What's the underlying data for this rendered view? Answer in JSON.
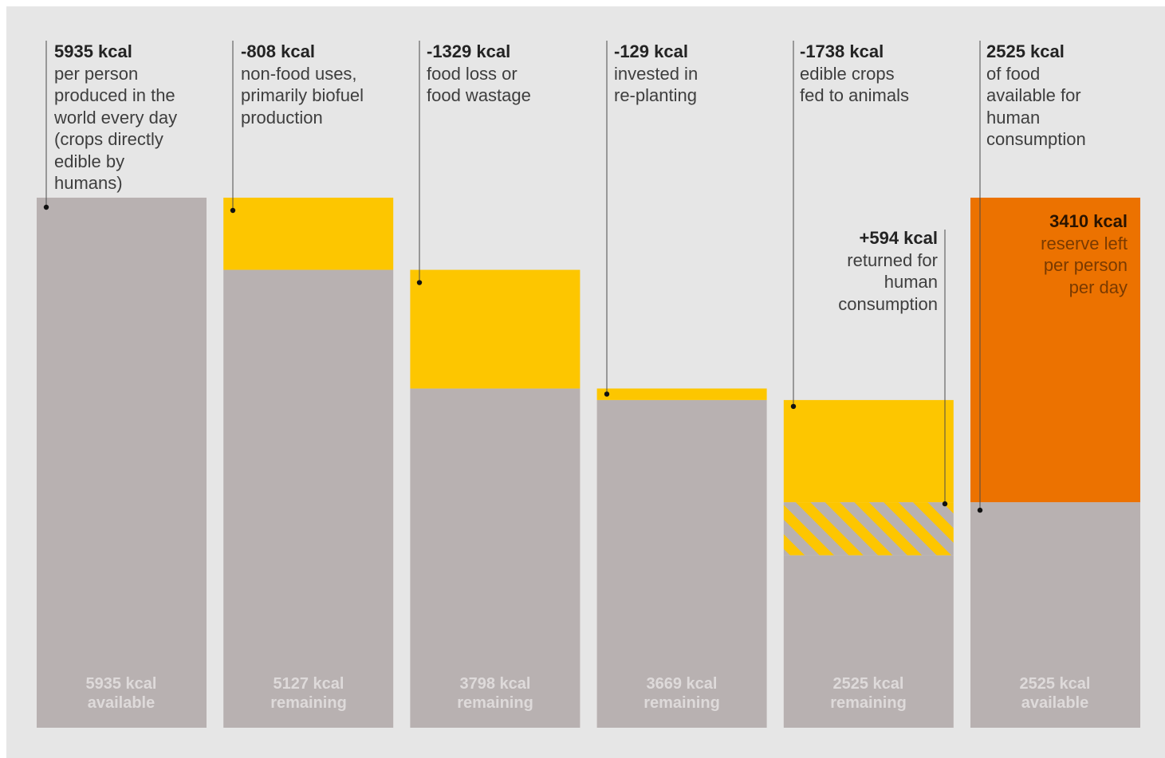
{
  "colors": {
    "background": "#e6e6e6",
    "remaining": "#b8b1b1",
    "loss": "#fdc600",
    "reserve": "#ec7200",
    "text": "#3e3e3e",
    "value_text": "#232323",
    "bottom_text": "#dedada",
    "reserve_desc": "#7a3a00"
  },
  "chart_data": {
    "type": "bar",
    "subtype": "waterfall",
    "title": "",
    "xlabel": "",
    "ylabel": "",
    "ylim": [
      0,
      5935
    ],
    "grid": false,
    "legend": "none",
    "steps": [
      {
        "value_label": "5935 kcal",
        "description": "per person\nproduced in the\nworld every day\n(crops directly\nedible by\nhumans)",
        "kind": "start",
        "change": 5935,
        "base": 5935,
        "bottom_value": "5935 kcal",
        "bottom_label": "available"
      },
      {
        "value_label": "-808 kcal",
        "description": "non-food uses,\nprimarily biofuel\nproduction",
        "kind": "loss",
        "change": -808,
        "base": 5127,
        "bottom_value": "5127 kcal",
        "bottom_label": "remaining"
      },
      {
        "value_label": "-1329 kcal",
        "description": "food loss or\nfood wastage",
        "kind": "loss",
        "change": -1329,
        "base": 3798,
        "bottom_value": "3798 kcal",
        "bottom_label": "remaining"
      },
      {
        "value_label": "-129 kcal",
        "description": "invested in\nre-planting",
        "kind": "loss",
        "change": -129,
        "base": 3669,
        "bottom_value": "3669 kcal",
        "bottom_label": "remaining"
      },
      {
        "value_label": "-1738 kcal",
        "description": "edible crops\nfed to animals",
        "kind": "loss",
        "change": -1738,
        "base": 1931,
        "returned": 594,
        "bottom_value": "2525 kcal",
        "bottom_label": "remaining"
      },
      {
        "value_label": "2525 kcal",
        "description": "of food\navailable for\nhuman\nconsumption",
        "kind": "end",
        "change": 0,
        "base": 2525,
        "reserve": 3410,
        "bottom_value": "2525 kcal",
        "bottom_label": "available"
      }
    ],
    "annotations": [
      {
        "value_label": "+594 kcal",
        "description": "returned for\nhuman\nconsumption",
        "value": 594
      },
      {
        "value_label": "3410 kcal",
        "description": "reserve left\nper person\nper day",
        "value": 3410
      }
    ]
  }
}
